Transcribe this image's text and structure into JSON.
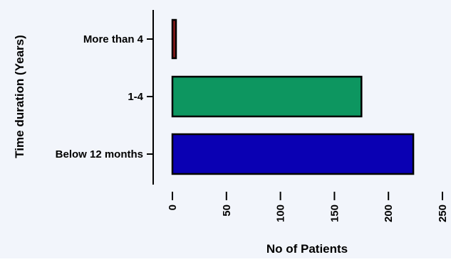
{
  "chart_data": {
    "type": "bar",
    "orientation": "horizontal",
    "categories": [
      "Below 12 months",
      "1-4",
      "More than 4"
    ],
    "values": [
      223,
      175,
      3
    ],
    "bar_colors": [
      "#0a00b3",
      "#0d9660",
      "#8b1a1a"
    ],
    "xlabel": "No of Patients",
    "ylabel": "Time duration (Years)",
    "xlim": [
      0,
      250
    ],
    "xticks": [
      0,
      50,
      100,
      150,
      200,
      250
    ],
    "grid": false,
    "legend": "none",
    "background": "#f2f5fb"
  }
}
